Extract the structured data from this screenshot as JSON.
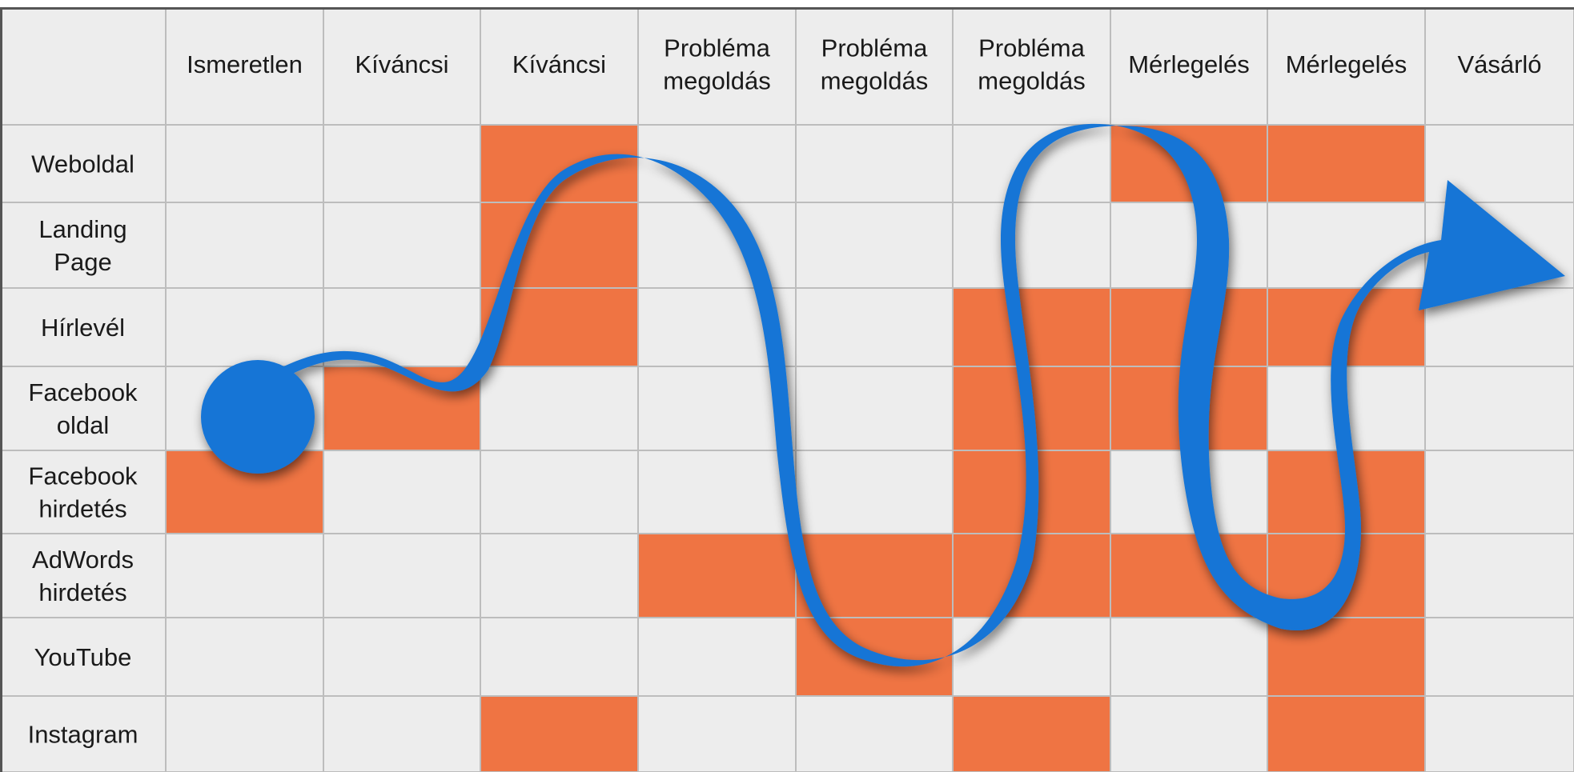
{
  "columns": [
    [
      "Ismeretlen"
    ],
    [
      "Kíváncsi"
    ],
    [
      "Kíváncsi"
    ],
    [
      "Probléma",
      "megoldás"
    ],
    [
      "Probléma",
      "megoldás"
    ],
    [
      "Probléma",
      "megoldás"
    ],
    [
      "Mérlegelés"
    ],
    [
      "Mérlegelés"
    ],
    [
      "Vásárló"
    ]
  ],
  "rows": [
    [
      "Weboldal"
    ],
    [
      "Landing",
      "Page"
    ],
    [
      "Hírlevél"
    ],
    [
      "Facebook",
      "oldal"
    ],
    [
      "Facebook",
      "hirdetés"
    ],
    [
      "AdWords",
      "hirdetés"
    ],
    [
      "YouTube"
    ],
    [
      "Instagram"
    ]
  ],
  "highlighted_cells": [
    [
      0,
      2
    ],
    [
      0,
      6
    ],
    [
      0,
      7
    ],
    [
      1,
      2
    ],
    [
      2,
      2
    ],
    [
      2,
      5
    ],
    [
      2,
      6
    ],
    [
      2,
      7
    ],
    [
      3,
      1
    ],
    [
      3,
      5
    ],
    [
      3,
      6
    ],
    [
      4,
      0
    ],
    [
      4,
      5
    ],
    [
      4,
      7
    ],
    [
      5,
      3
    ],
    [
      5,
      4
    ],
    [
      5,
      5
    ],
    [
      5,
      6
    ],
    [
      5,
      7
    ],
    [
      6,
      4
    ],
    [
      6,
      7
    ],
    [
      7,
      2
    ],
    [
      7,
      5
    ],
    [
      7,
      7
    ]
  ],
  "colors": {
    "cell": "#ededed",
    "highlight": "#ef7443",
    "gridline": "#bdbdbd",
    "border": "#555555",
    "ribbon": "#1575d6"
  }
}
